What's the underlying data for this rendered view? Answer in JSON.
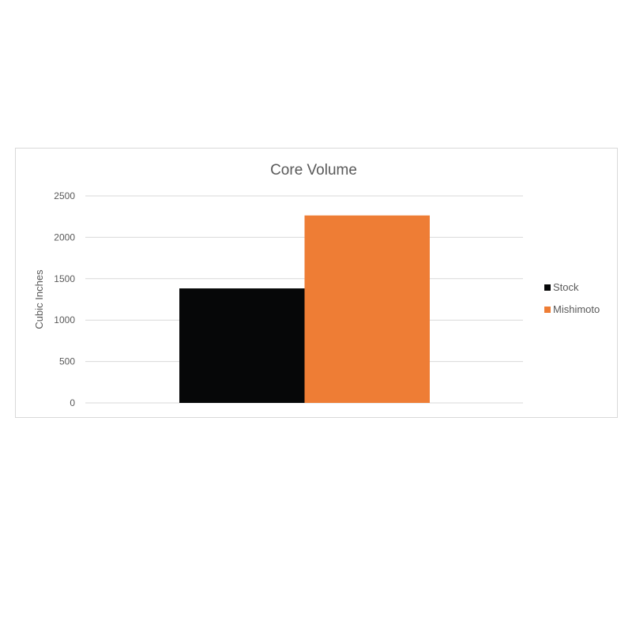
{
  "chart_data": {
    "type": "bar",
    "title": "Core Volume",
    "xlabel": "",
    "ylabel": "Cubic Inches",
    "categories": [
      ""
    ],
    "series": [
      {
        "name": "Stock",
        "values": [
          1383
        ],
        "color": "#060708"
      },
      {
        "name": "Mishimoto",
        "values": [
          2264
        ],
        "color": "#ee7d35"
      }
    ],
    "ylim": [
      0,
      2500
    ],
    "yticks": [
      0,
      500,
      1000,
      1500,
      2000,
      2500
    ],
    "grid": true,
    "legend": "right"
  }
}
